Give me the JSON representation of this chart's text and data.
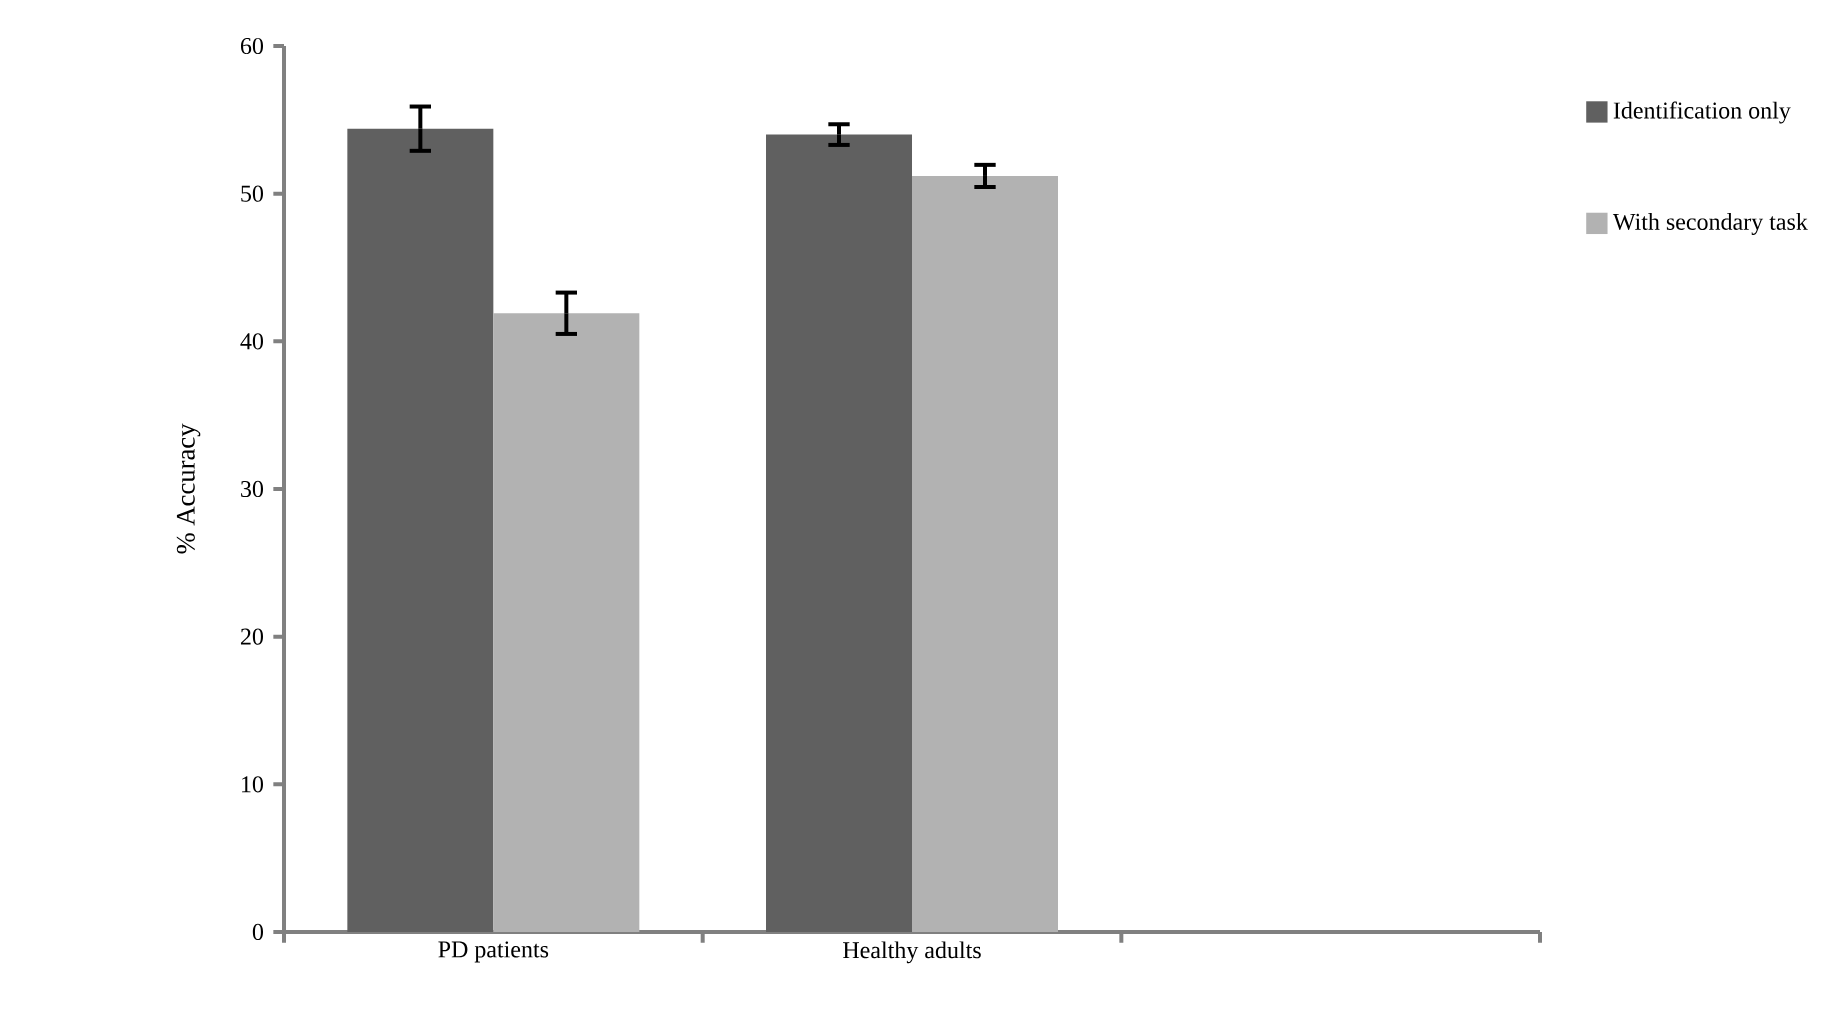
{
  "chart_data": {
    "type": "bar",
    "ylabel": "% Accuracy",
    "categories": [
      "PD patients",
      "Healthy adults",
      null
    ],
    "series": [
      {
        "name": "Identification only",
        "color": "#606060",
        "values": [
          54.4,
          54.0,
          null
        ],
        "errors": [
          1.5,
          0.7,
          null
        ]
      },
      {
        "name": "With secondary task",
        "color": "#b2b2b2",
        "values": [
          41.9,
          51.2,
          null
        ],
        "errors": [
          1.4,
          0.75,
          null
        ]
      }
    ],
    "ylim": [
      0,
      60
    ],
    "yticks": [
      0,
      10,
      20,
      30,
      40,
      50,
      60
    ],
    "grid": false,
    "legend": "top right"
  }
}
